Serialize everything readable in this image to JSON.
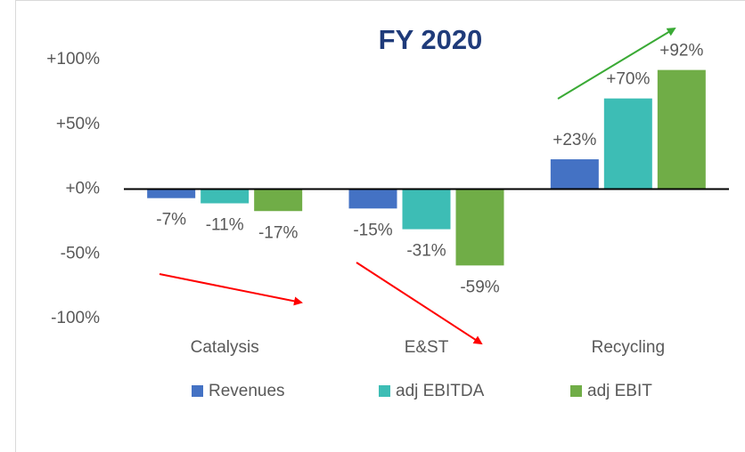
{
  "chart_data": {
    "type": "bar",
    "title": "FY 2020",
    "categories": [
      "Catalysis",
      "E&ST",
      "Recycling"
    ],
    "series": [
      {
        "name": "Revenues",
        "color": "#4472c4",
        "values": [
          -7,
          -15,
          23
        ],
        "value_labels": [
          "-7%",
          "-15%",
          "+23%"
        ]
      },
      {
        "name": "adj EBITDA",
        "color": "#3dbdb5",
        "values": [
          -11,
          -31,
          70
        ],
        "value_labels": [
          "-11%",
          "-31%",
          "+70%"
        ]
      },
      {
        "name": "adj EBIT",
        "color": "#70ad47",
        "values": [
          -17,
          -59,
          92
        ],
        "value_labels": [
          "-17%",
          "-59%",
          "+92%"
        ]
      }
    ],
    "ylim": [
      -100,
      100
    ],
    "yticks": [
      {
        "value": -100,
        "label": "-100%"
      },
      {
        "value": -50,
        "label": "-50%"
      },
      {
        "value": 0,
        "label": "+0%"
      },
      {
        "value": 50,
        "label": "+50%"
      },
      {
        "value": 100,
        "label": "+100%"
      }
    ],
    "grid": false,
    "legend": "bottom"
  }
}
